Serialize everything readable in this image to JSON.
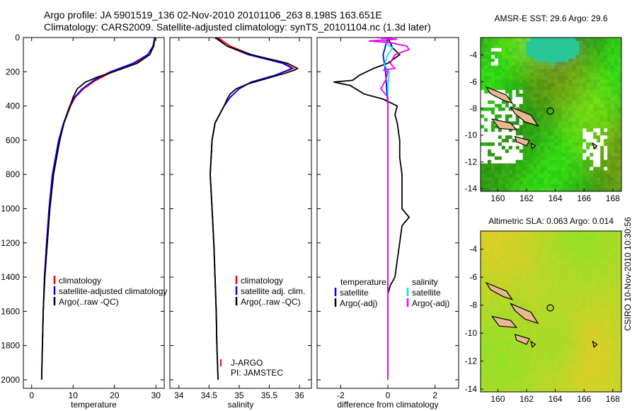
{
  "header": {
    "line1": "Argo profile: JA 5901519_136 02-Nov-2010 20101106_263 8.198S 163.651E",
    "line2": "Climatology: CARS2009. Satellite-adjusted climatology: synTS_20101104.nc (1.3d later)"
  },
  "stamp": "CSIRO 10-Nov-2010 10:30:56",
  "colors": {
    "climatology": "#ff0000",
    "satellite": "#0000ff",
    "argo": "#000000",
    "salinity_satellite": "#00e5ee",
    "salinity_argo": "#ee00ee"
  },
  "chart_data": [
    {
      "type": "line",
      "id": "temperature",
      "xlabel": "temperature",
      "xlim": [
        -2,
        32
      ],
      "ylim": [
        2050,
        0
      ],
      "xticks": [
        0,
        10,
        20,
        30
      ],
      "yticks": [
        0,
        200,
        400,
        600,
        800,
        1000,
        1200,
        1400,
        1600,
        1800,
        2000
      ],
      "legend": [
        "climatology",
        "satellite-adjusted climatology",
        "Argo(..raw -QC)"
      ],
      "series": [
        {
          "name": "climatology",
          "color": "#ff0000",
          "depth": [
            0,
            50,
            100,
            150,
            200,
            250,
            300,
            350,
            400,
            500,
            600,
            800,
            1000,
            1200,
            1400,
            1600,
            1800
          ],
          "values": [
            29.7,
            29.5,
            28.5,
            25.0,
            19.5,
            15.5,
            12.5,
            10.5,
            9.4,
            7.8,
            6.6,
            5.0,
            4.2,
            3.6,
            3.1,
            2.8,
            2.6
          ]
        },
        {
          "name": "satellite-adjusted climatology",
          "color": "#0000ff",
          "depth": [
            0,
            50,
            100,
            150,
            200,
            250,
            300,
            350,
            400,
            500,
            600,
            800,
            1000,
            1200,
            1400,
            1600,
            1800,
            2000
          ],
          "values": [
            29.7,
            29.3,
            28.0,
            24.5,
            19.0,
            15.0,
            12.2,
            10.3,
            9.2,
            7.7,
            6.5,
            5.0,
            4.2,
            3.6,
            3.1,
            2.8,
            2.6,
            2.4
          ]
        },
        {
          "name": "Argo(..raw -QC)",
          "color": "#000000",
          "depth": [
            0,
            50,
            100,
            150,
            200,
            230,
            260,
            300,
            350,
            400,
            500,
            600,
            800,
            1000,
            1200,
            1400,
            1600,
            1800,
            2000
          ],
          "values": [
            29.8,
            29.4,
            28.5,
            25.5,
            19.8,
            16.0,
            13.0,
            11.0,
            10.0,
            9.3,
            7.8,
            6.8,
            5.3,
            4.4,
            3.8,
            3.2,
            2.8,
            2.6,
            2.4
          ]
        }
      ]
    },
    {
      "type": "line",
      "id": "salinity",
      "xlabel": "salinity",
      "xlim": [
        33.85,
        36.2
      ],
      "ylim": [
        2050,
        0
      ],
      "xticks": [
        34,
        34.5,
        35,
        35.5,
        36
      ],
      "yticks": [
        0,
        200,
        400,
        600,
        800,
        1000,
        1200,
        1400,
        1600,
        1800,
        2000
      ],
      "legend": [
        "climatology",
        "satellite adj. clim.",
        "Argo(..raw -QC)"
      ],
      "annotations": [
        "J-ARGO",
        "PI: JAMSTEC"
      ],
      "series": [
        {
          "name": "climatology",
          "color": "#ff0000",
          "depth": [
            0,
            50,
            100,
            150,
            180,
            220,
            260,
            300,
            350,
            400,
            500,
            600,
            800,
            1000,
            1200,
            1400,
            1600,
            1800
          ],
          "values": [
            34.65,
            34.85,
            35.2,
            35.75,
            35.9,
            35.6,
            35.2,
            35.0,
            34.85,
            34.75,
            34.6,
            34.55,
            34.52,
            34.55,
            34.58,
            34.6,
            34.62,
            34.63
          ]
        },
        {
          "name": "satellite adj. clim.",
          "color": "#0000ff",
          "depth": [
            0,
            50,
            100,
            150,
            180,
            220,
            260,
            300,
            350,
            400,
            500,
            600,
            800,
            1000,
            1200,
            1400,
            1600,
            1800,
            2000
          ],
          "values": [
            34.62,
            34.8,
            35.15,
            35.72,
            35.88,
            35.6,
            35.2,
            35.0,
            34.85,
            34.75,
            34.6,
            34.55,
            34.52,
            34.55,
            34.58,
            34.6,
            34.62,
            34.63,
            34.65
          ]
        },
        {
          "name": "Argo(..raw -QC)",
          "color": "#000000",
          "depth": [
            0,
            50,
            100,
            150,
            180,
            190,
            210,
            240,
            270,
            300,
            330,
            360,
            400,
            500,
            600,
            800,
            1000,
            1200,
            1400,
            1600,
            1800,
            2000
          ],
          "values": [
            34.6,
            34.8,
            35.2,
            35.8,
            35.97,
            35.92,
            35.75,
            35.45,
            35.15,
            34.95,
            34.85,
            34.8,
            34.75,
            34.6,
            34.55,
            34.52,
            34.55,
            34.58,
            34.6,
            34.62,
            34.63,
            34.65
          ]
        }
      ]
    },
    {
      "type": "line",
      "id": "difference",
      "xlabel": "difference from climatology",
      "xlim": [
        -3.0,
        3.0
      ],
      "ylim": [
        2050,
        0
      ],
      "xticks": [
        -2,
        0,
        2
      ],
      "yticks": [
        0,
        200,
        400,
        600,
        800,
        1000,
        1200,
        1400,
        1600,
        1800,
        2000
      ],
      "legend_temperature": [
        "temperature",
        "satellite",
        "Argo(-adj)"
      ],
      "legend_salinity": [
        "salinity",
        "satellite",
        "Argo(-adj)"
      ],
      "series": [
        {
          "name": "temperature satellite",
          "color": "#0000ff",
          "depth": [
            0,
            100,
            200,
            400,
            800,
            1200,
            1600,
            2000
          ],
          "values": [
            0.0,
            -0.2,
            -0.1,
            0.0,
            0.0,
            0.0,
            0.0,
            0.0
          ]
        },
        {
          "name": "temperature Argo(-adj)",
          "color": "#000000",
          "depth": [
            0,
            30,
            60,
            100,
            150,
            180,
            220,
            250,
            260,
            280,
            330,
            360,
            400,
            450,
            500,
            600,
            700,
            800,
            900,
            1000,
            1050,
            1100,
            1200,
            1300,
            1400,
            1450,
            1500,
            1600,
            1800,
            2000
          ],
          "values": [
            0.0,
            0.1,
            0.2,
            0.5,
            0.0,
            -0.6,
            -1.2,
            -1.5,
            -2.3,
            -1.6,
            -1.0,
            -0.2,
            0.4,
            0.3,
            0.4,
            0.5,
            0.5,
            0.6,
            0.6,
            0.6,
            0.9,
            0.6,
            0.5,
            0.4,
            0.3,
            0.1,
            0.0,
            0.0,
            0.0,
            0.0
          ]
        },
        {
          "name": "salinity satellite",
          "color": "#00e5ee",
          "depth": [
            0,
            30,
            60,
            100,
            160,
            200,
            300,
            500,
            1000,
            1500,
            2000
          ],
          "values": [
            -0.3,
            -0.1,
            0.2,
            0.0,
            -0.15,
            0.05,
            0.0,
            0.0,
            0.0,
            0.0,
            0.0
          ]
        },
        {
          "name": "salinity Argo(-adj)",
          "color": "#ee00ee",
          "depth": [
            0,
            10,
            20,
            30,
            50,
            70,
            100,
            150,
            180,
            190,
            200,
            250,
            300,
            330,
            350,
            400,
            500,
            800,
            1200,
            2000
          ],
          "values": [
            -0.5,
            0.4,
            -0.8,
            0.1,
            0.8,
            0.9,
            0.3,
            0.1,
            0.3,
            -0.2,
            0.0,
            -0.1,
            -0.3,
            -0.1,
            0.0,
            0.0,
            0.0,
            0.0,
            0.0,
            0.0
          ]
        }
      ]
    },
    {
      "type": "heatmap",
      "id": "sst-map",
      "title": "AMSR-E SST: 29.6 Argo: 29.6",
      "xlim": [
        158.8,
        168.6
      ],
      "ylim": [
        -14.2,
        -2.7
      ],
      "xticks": [
        160,
        162,
        164,
        166,
        168
      ],
      "yticks": [
        -4,
        -6,
        -8,
        -10,
        -12,
        -14
      ],
      "profile_location": {
        "lon": 163.651,
        "lat": -8.198
      }
    },
    {
      "type": "heatmap",
      "id": "sla-map",
      "title": "Altimetric SLA: 0.063 Argo: 0.014",
      "xlim": [
        158.8,
        168.6
      ],
      "ylim": [
        -14.2,
        -2.7
      ],
      "xticks": [
        160,
        162,
        164,
        166,
        168
      ],
      "yticks": [
        -4,
        -6,
        -8,
        -10,
        -12,
        -14
      ],
      "profile_location": {
        "lon": 163.651,
        "lat": -8.198
      }
    }
  ]
}
